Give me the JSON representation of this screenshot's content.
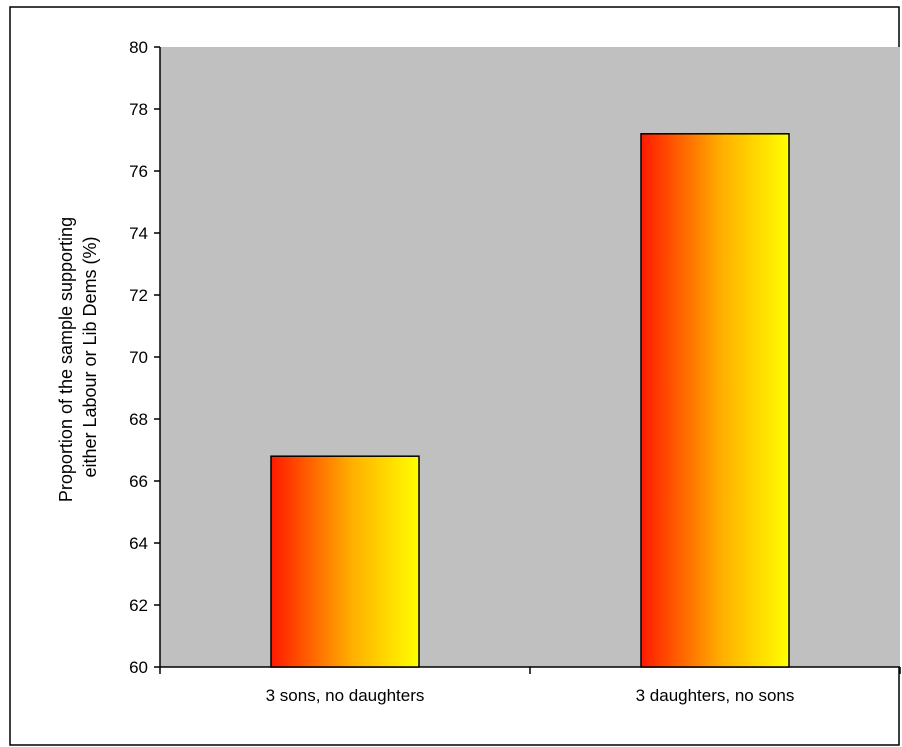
{
  "chart_data": {
    "type": "bar",
    "title": "",
    "xlabel": "",
    "ylabel_lines": [
      "Proportion of the sample supporting",
      "either Labour or Lib Dems (%)"
    ],
    "categories": [
      "3 sons, no daughters",
      "3 daughters, no sons"
    ],
    "values": [
      66.8,
      77.2
    ],
    "ylim": [
      60,
      80
    ],
    "yticks": [
      "60",
      "62",
      "64",
      "66",
      "68",
      "70",
      "72",
      "74",
      "76",
      "78",
      "80"
    ],
    "grid": false,
    "legend": "none",
    "colors": {
      "plot_background": "#c0c0c0",
      "bar_gradient_start": "#ff1a00",
      "bar_gradient_mid": "#ffb000",
      "bar_gradient_end": "#ffff00",
      "bar_outline": "#000000"
    }
  }
}
